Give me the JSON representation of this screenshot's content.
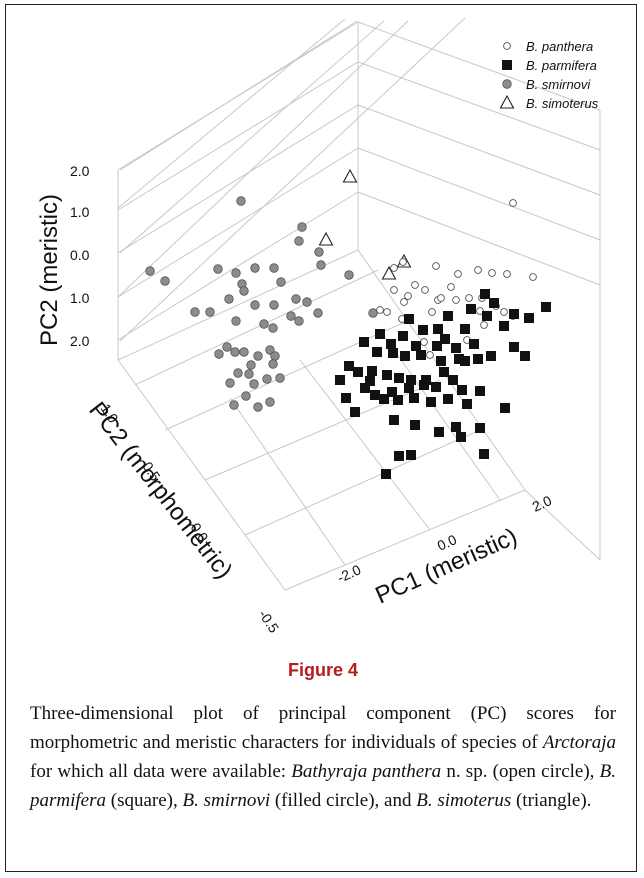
{
  "chart_data": {
    "type": "scatter",
    "dimensions": 3,
    "axes": {
      "x": {
        "label": "PC1 (meristic)",
        "ticks": [
          "-2.0",
          "0.0",
          "2.0"
        ]
      },
      "y": {
        "label": "PC2 (morphometric)",
        "ticks": [
          "-0.5",
          "0.0",
          "0.5",
          "1.0"
        ]
      },
      "z": {
        "label": "PC2 (meristic)",
        "ticks": [
          "2.0",
          "1.0",
          "0.0",
          "1.0",
          "2.0"
        ]
      }
    },
    "legend_placement": "top-right",
    "grid": true,
    "series": [
      {
        "name": "B. panthera",
        "marker": "open-circle",
        "color": "#ffffff",
        "points_projected": [
          [
            513,
            203
          ],
          [
            403,
            262
          ],
          [
            394,
            268
          ],
          [
            436,
            266
          ],
          [
            458,
            274
          ],
          [
            478,
            270
          ],
          [
            492,
            273
          ],
          [
            507,
            274
          ],
          [
            533,
            277
          ],
          [
            415,
            285
          ],
          [
            438,
            300
          ],
          [
            441,
            298
          ],
          [
            456,
            300
          ],
          [
            469,
            298
          ],
          [
            394,
            290
          ],
          [
            408,
            296
          ],
          [
            425,
            290
          ],
          [
            451,
            287
          ],
          [
            482,
            298
          ],
          [
            404,
            302
          ],
          [
            380,
            310
          ],
          [
            432,
            312
          ],
          [
            480,
            311
          ],
          [
            496,
            306
          ],
          [
            402,
            319
          ],
          [
            424,
            342
          ],
          [
            430,
            355
          ],
          [
            467,
            340
          ],
          [
            484,
            325
          ],
          [
            504,
            312
          ],
          [
            513,
            316
          ],
          [
            387,
            312
          ]
        ]
      },
      {
        "name": "B. parmifera",
        "marker": "square",
        "color": "#111111",
        "points_projected": [
          [
            485,
            294
          ],
          [
            494,
            303
          ],
          [
            546,
            307
          ],
          [
            471,
            309
          ],
          [
            487,
            316
          ],
          [
            514,
            314
          ],
          [
            529,
            318
          ],
          [
            409,
            319
          ],
          [
            448,
            316
          ],
          [
            423,
            330
          ],
          [
            438,
            329
          ],
          [
            465,
            329
          ],
          [
            504,
            326
          ],
          [
            380,
            334
          ],
          [
            403,
            336
          ],
          [
            391,
            344
          ],
          [
            416,
            346
          ],
          [
            437,
            346
          ],
          [
            456,
            348
          ],
          [
            474,
            344
          ],
          [
            445,
            339
          ],
          [
            514,
            347
          ],
          [
            525,
            356
          ],
          [
            364,
            342
          ],
          [
            377,
            352
          ],
          [
            393,
            353
          ],
          [
            405,
            356
          ],
          [
            421,
            355
          ],
          [
            441,
            361
          ],
          [
            459,
            359
          ],
          [
            491,
            356
          ],
          [
            349,
            366
          ],
          [
            358,
            372
          ],
          [
            372,
            371
          ],
          [
            387,
            375
          ],
          [
            399,
            378
          ],
          [
            411,
            380
          ],
          [
            426,
            380
          ],
          [
            444,
            372
          ],
          [
            465,
            361
          ],
          [
            478,
            359
          ],
          [
            392,
            392
          ],
          [
            409,
            388
          ],
          [
            424,
            385
          ],
          [
            436,
            387
          ],
          [
            453,
            380
          ],
          [
            462,
            390
          ],
          [
            480,
            391
          ],
          [
            340,
            380
          ],
          [
            346,
            398
          ],
          [
            370,
            381
          ],
          [
            384,
            399
          ],
          [
            398,
            400
          ],
          [
            414,
            398
          ],
          [
            431,
            402
          ],
          [
            448,
            399
          ],
          [
            467,
            404
          ],
          [
            505,
            408
          ],
          [
            355,
            412
          ],
          [
            394,
            420
          ],
          [
            415,
            425
          ],
          [
            439,
            432
          ],
          [
            456,
            427
          ],
          [
            480,
            428
          ],
          [
            461,
            437
          ],
          [
            399,
            456
          ],
          [
            411,
            455
          ],
          [
            484,
            454
          ],
          [
            386,
            474
          ],
          [
            375,
            395
          ],
          [
            365,
            388
          ]
        ]
      },
      {
        "name": "B. smirnovi",
        "marker": "filled-circle",
        "color": "#8c8c8c",
        "points_projected": [
          [
            241,
            201
          ],
          [
            302,
            227
          ],
          [
            299,
            241
          ],
          [
            150,
            271
          ],
          [
            165,
            281
          ],
          [
            218,
            269
          ],
          [
            236,
            273
          ],
          [
            255,
            268
          ],
          [
            274,
            268
          ],
          [
            319,
            252
          ],
          [
            321,
            265
          ],
          [
            349,
            275
          ],
          [
            242,
            284
          ],
          [
            244,
            291
          ],
          [
            281,
            282
          ],
          [
            296,
            299
          ],
          [
            307,
            302
          ],
          [
            291,
            316
          ],
          [
            299,
            321
          ],
          [
            318,
            313
          ],
          [
            274,
            305
          ],
          [
            273,
            328
          ],
          [
            195,
            312
          ],
          [
            210,
            312
          ],
          [
            255,
            305
          ],
          [
            236,
            321
          ],
          [
            264,
            324
          ],
          [
            227,
            347
          ],
          [
            219,
            354
          ],
          [
            235,
            352
          ],
          [
            244,
            352
          ],
          [
            258,
            356
          ],
          [
            270,
            350
          ],
          [
            275,
            356
          ],
          [
            273,
            364
          ],
          [
            251,
            365
          ],
          [
            238,
            373
          ],
          [
            249,
            374
          ],
          [
            230,
            383
          ],
          [
            254,
            384
          ],
          [
            267,
            379
          ],
          [
            280,
            378
          ],
          [
            246,
            396
          ],
          [
            234,
            405
          ],
          [
            258,
            407
          ],
          [
            270,
            402
          ],
          [
            373,
            313
          ],
          [
            229,
            299
          ]
        ]
      },
      {
        "name": "B. simoterus",
        "marker": "triangle",
        "color": "#ffffff",
        "points_projected": [
          [
            350,
            177
          ],
          [
            326,
            240
          ],
          [
            404,
            262
          ],
          [
            389,
            274
          ]
        ]
      }
    ]
  },
  "figure_label": "Figure 4",
  "caption": {
    "intro": "Three-dimensional plot of principal component (PC) scores for morphometric and meristic characters for individuals of species of ",
    "genus": "Arctoraja",
    "middle": " for which all data were available: ",
    "sp1_name": "Bathyraja panthera",
    "sp1_suffix": " n. sp. (open circle), ",
    "sp2_name": "B. parmifera",
    "sp2_suffix": " (square), ",
    "sp3_name": "B. smirnovi",
    "sp3_suffix": " (filled circle), and ",
    "sp4_name": "B. simoterus",
    "sp4_suffix": " (triangle)."
  }
}
